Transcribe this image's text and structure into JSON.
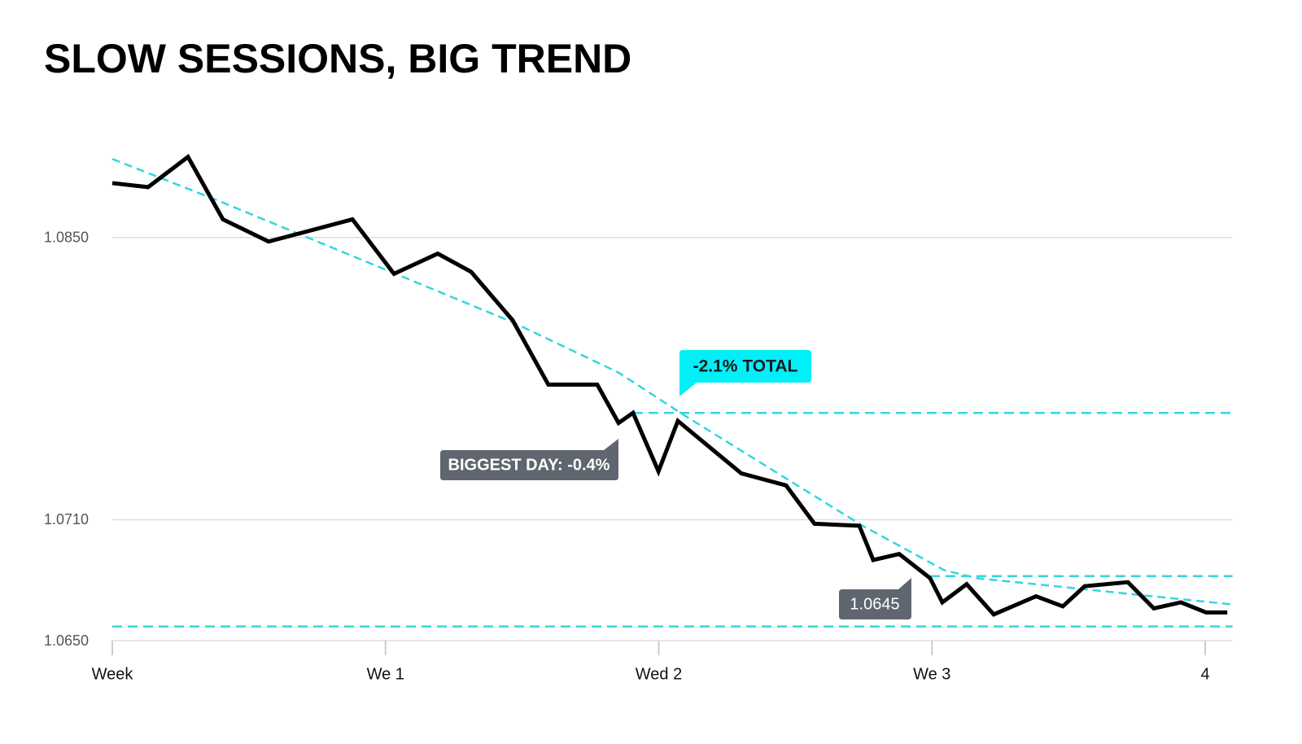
{
  "chart_data": {
    "type": "line",
    "title": "SLOW SESSIONS, BIG TREND",
    "xlim": [
      0,
      4.1
    ],
    "xticks": [
      {
        "value": 0,
        "label": "Week"
      },
      {
        "value": 1,
        "label": "We 1"
      },
      {
        "value": 2,
        "label": "Wed 2"
      },
      {
        "value": 3,
        "label": "We 3"
      },
      4
    ],
    "ylim": [
      1.065,
      1.09
    ],
    "yticks": [
      {
        "value": 1.085,
        "label": "1.0850"
      },
      {
        "value": 1.071,
        "label": "1.0710"
      },
      {
        "value": 1.065,
        "label": "1.0650"
      }
    ],
    "grid": true,
    "series": [
      {
        "color": "#000000",
        "dash": false,
        "x": [
          0,
          0.131,
          0.277,
          0.405,
          0.572,
          0.879,
          1.031,
          1.191,
          1.313,
          1.465,
          1.596,
          1.775,
          1.853,
          1.906,
          1.999,
          2.07,
          2.195,
          2.302,
          2.466,
          2.57,
          2.734,
          2.785,
          2.88,
          2.993,
          3.038,
          3.127,
          3.226,
          3.381,
          3.479,
          3.559,
          3.717,
          3.812,
          3.911,
          4.003,
          4.081
        ],
        "values": [
          1.0877,
          1.0875,
          1.089,
          1.0859,
          1.0848,
          1.0859,
          1.0832,
          1.0842,
          1.0833,
          1.0809,
          1.0777,
          1.0777,
          1.0758,
          1.0763,
          1.0734,
          1.0759,
          1.0745,
          1.0733,
          1.0727,
          1.0708,
          1.0707,
          1.069,
          1.0693,
          1.0681,
          1.0669,
          1.0678,
          1.0663,
          1.0672,
          1.0667,
          1.0677,
          1.0679,
          1.0666,
          1.0669,
          1.0664,
          1.0664
        ]
      },
      {
        "color": "#33d6e0",
        "dash": true,
        "x": [
          0,
          0.393,
          1.019,
          1.465,
          1.853,
          2.091,
          2.448,
          2.746,
          3.044,
          3.163,
          4.095
        ],
        "values": [
          1.0889,
          1.0868,
          1.0833,
          1.0808,
          1.0783,
          1.0762,
          1.0732,
          1.0707,
          1.0685,
          1.0681,
          1.0668
        ]
      }
    ],
    "reference_lines": [
      {
        "value": 1.0763,
        "x_start": 1.906,
        "color": "#33d6e0"
      },
      {
        "value": 1.0682,
        "x_start": 2.993,
        "color": "#33d6e0"
      },
      {
        "value": 1.0657,
        "x_start": 0,
        "color": "#33d6e0"
      }
    ],
    "annotations": [
      "-2.1% TOTAL",
      "BIGGEST DAY: -0.4%",
      "1.0645"
    ]
  }
}
